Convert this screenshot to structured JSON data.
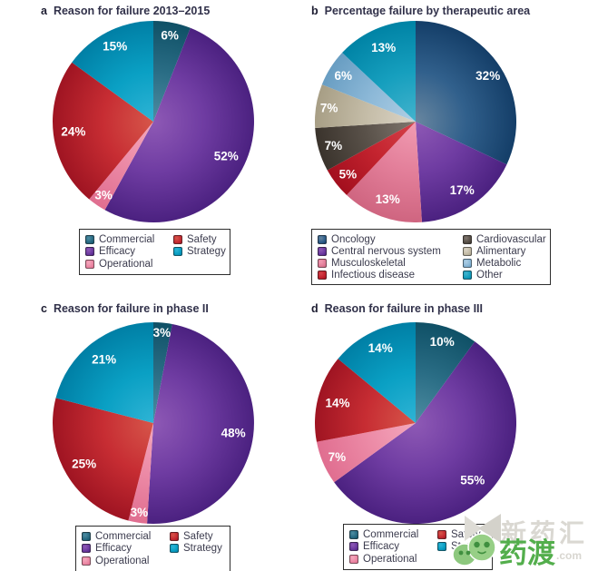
{
  "figure": {
    "background": "#ffffff",
    "percent_label_color": "#ffffff"
  },
  "palette": {
    "commercial": {
      "light": "#4e8da2",
      "base": "#2a6d85",
      "dark": "#0f5066"
    },
    "efficacy": {
      "light": "#8e59b5",
      "base": "#6f3ca2",
      "dark": "#4b2180"
    },
    "operational": {
      "light": "#f4a8bd",
      "base": "#ec8aa6",
      "dark": "#e06e90"
    },
    "safety": {
      "light": "#d6564a",
      "base": "#c72d33",
      "dark": "#9f1422"
    },
    "strategy": {
      "light": "#2fb4d5",
      "base": "#0aa0c4",
      "dark": "#007fa5"
    },
    "oncology": {
      "light": "#68869f",
      "base": "#31608c",
      "dark": "#143e68"
    },
    "cns": {
      "light": "#8e59b5",
      "base": "#6f3ca2",
      "dark": "#4b2180"
    },
    "musculoskeletal": {
      "light": "#f19cb2",
      "base": "#e37f9a",
      "dark": "#cf6580"
    },
    "infectious": {
      "light": "#d5424a",
      "base": "#c4242f",
      "dark": "#a30f1e"
    },
    "cardiovascular": {
      "light": "#80776f",
      "base": "#5a524a",
      "dark": "#3a332c"
    },
    "alimentary": {
      "light": "#dbd4c6",
      "base": "#c4bca7",
      "dark": "#a79e85"
    },
    "metabolic": {
      "light": "#b0cfe4",
      "base": "#8db9d8",
      "dark": "#689dc2"
    },
    "other": {
      "light": "#43b3cd",
      "base": "#169fbe",
      "dark": "#0083a5"
    }
  },
  "chart_data": [
    {
      "letter": "a",
      "title": "Reason for failure 2013–2015",
      "type": "pie",
      "unit": "%",
      "start_angle_deg": 0,
      "direction": "clockwise",
      "legend_position": "bottom",
      "slices": [
        {
          "label": "Commercial",
          "value": 6,
          "color": "commercial",
          "lr": 0.87
        },
        {
          "label": "Efficacy",
          "value": 52,
          "color": "efficacy",
          "lr": 0.8
        },
        {
          "label": "Operational",
          "value": 3,
          "color": "operational",
          "lr": 0.88
        },
        {
          "label": "Safety",
          "value": 24,
          "color": "safety",
          "lr": 0.8
        },
        {
          "label": "Strategy",
          "value": 15,
          "color": "strategy",
          "lr": 0.84
        }
      ],
      "legend_columns": [
        [
          {
            "label": "Commercial",
            "color": "commercial"
          },
          {
            "label": "Efficacy",
            "color": "efficacy"
          },
          {
            "label": "Operational",
            "color": "operational"
          }
        ],
        [
          {
            "label": "Safety",
            "color": "safety"
          },
          {
            "label": "Strategy",
            "color": "strategy"
          }
        ]
      ]
    },
    {
      "letter": "b",
      "title": "Percentage failure by therapeutic area",
      "type": "pie",
      "unit": "%",
      "start_angle_deg": 0,
      "direction": "clockwise",
      "legend_position": "bottom",
      "slices": [
        {
          "label": "Oncology",
          "value": 32,
          "color": "oncology",
          "lr": 0.85
        },
        {
          "label": "Central nervous system",
          "value": 17,
          "color": "cns",
          "lr": 0.82
        },
        {
          "label": "Musculoskeletal",
          "value": 13,
          "color": "musculoskeletal",
          "lr": 0.82
        },
        {
          "label": "Infectious disease",
          "value": 5,
          "color": "infectious",
          "lr": 0.85
        },
        {
          "label": "Cardiovascular",
          "value": 7,
          "color": "cardiovascular",
          "lr": 0.85
        },
        {
          "label": "Alimentary",
          "value": 7,
          "color": "alimentary",
          "lr": 0.87
        },
        {
          "label": "Metabolic",
          "value": 6,
          "color": "metabolic",
          "lr": 0.85
        },
        {
          "label": "Other",
          "value": 13,
          "color": "other",
          "lr": 0.8
        }
      ],
      "legend_columns": [
        [
          {
            "label": "Oncology",
            "color": "oncology"
          },
          {
            "label": "Central nervous system",
            "color": "cns"
          },
          {
            "label": "Musculoskeletal",
            "color": "musculoskeletal"
          },
          {
            "label": "Infectious disease",
            "color": "infectious"
          }
        ],
        [
          {
            "label": "Cardiovascular",
            "color": "cardiovascular"
          },
          {
            "label": "Alimentary",
            "color": "alimentary"
          },
          {
            "label": "Metabolic",
            "color": "metabolic"
          },
          {
            "label": "Other",
            "color": "other"
          }
        ]
      ]
    },
    {
      "letter": "c",
      "title": "Reason for failure in phase II",
      "type": "pie",
      "unit": "%",
      "start_angle_deg": 0,
      "direction": "clockwise",
      "legend_position": "bottom",
      "slices": [
        {
          "label": "Commercial",
          "value": 3,
          "color": "commercial",
          "lr": 0.9
        },
        {
          "label": "Efficacy",
          "value": 48,
          "color": "efficacy",
          "lr": 0.8
        },
        {
          "label": "Operational",
          "value": 3,
          "color": "operational",
          "lr": 0.9
        },
        {
          "label": "Safety",
          "value": 25,
          "color": "safety",
          "lr": 0.8
        },
        {
          "label": "Strategy",
          "value": 21,
          "color": "strategy",
          "lr": 0.8
        }
      ],
      "legend_columns": [
        [
          {
            "label": "Commercial",
            "color": "commercial"
          },
          {
            "label": "Efficacy",
            "color": "efficacy"
          },
          {
            "label": "Operational",
            "color": "operational"
          }
        ],
        [
          {
            "label": "Safety",
            "color": "safety"
          },
          {
            "label": "Strategy",
            "color": "strategy"
          }
        ]
      ]
    },
    {
      "letter": "d",
      "title": "Reason for failure in phase III",
      "type": "pie",
      "unit": "%",
      "start_angle_deg": 0,
      "direction": "clockwise",
      "legend_position": "bottom",
      "slices": [
        {
          "label": "Commercial",
          "value": 10,
          "color": "commercial",
          "lr": 0.85
        },
        {
          "label": "Efficacy",
          "value": 55,
          "color": "efficacy",
          "lr": 0.8
        },
        {
          "label": "Operational",
          "value": 7,
          "color": "operational",
          "lr": 0.85
        },
        {
          "label": "Safety",
          "value": 14,
          "color": "safety",
          "lr": 0.8
        },
        {
          "label": "Strategy",
          "value": 14,
          "color": "strategy",
          "lr": 0.82
        }
      ],
      "legend_columns": [
        [
          {
            "label": "Commercial",
            "color": "commercial"
          },
          {
            "label": "Efficacy",
            "color": "efficacy"
          },
          {
            "label": "Operational",
            "color": "operational"
          }
        ],
        [
          {
            "label": "Safety",
            "color": "safety"
          },
          {
            "label": "Strategy",
            "color": "strategy"
          }
        ]
      ]
    }
  ],
  "watermark": {
    "gray_text": "新药汇",
    "green_text": "药渡",
    "suffix": ".com",
    "green_color": "#53ae4c",
    "gray_color": "#dad8d2"
  }
}
